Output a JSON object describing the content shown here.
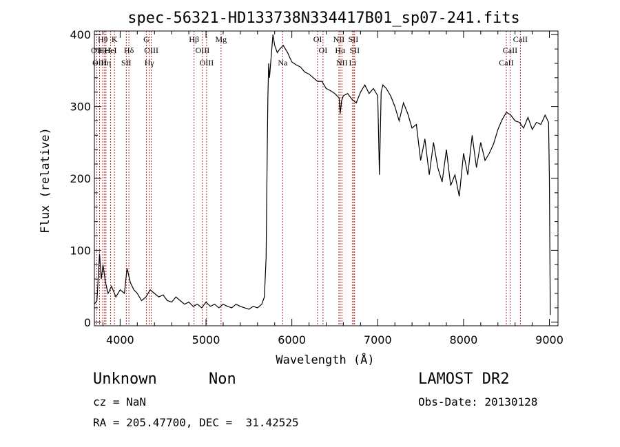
{
  "chart_data": {
    "type": "line",
    "title": "spec-56321-HD133738N334417B01_sp07-241.fits",
    "xlabel": "Wavelength (Å)",
    "ylabel": "Flux (relative)",
    "xlim": [
      3700,
      9100
    ],
    "ylim": [
      -5,
      405
    ],
    "xticks": [
      4000,
      5000,
      6000,
      7000,
      8000,
      9000
    ],
    "yticks": [
      0,
      100,
      200,
      300,
      400
    ],
    "grid": false,
    "series": [
      {
        "line_color": "#000000",
        "x": [
          3700,
          3730,
          3760,
          3780,
          3800,
          3830,
          3860,
          3900,
          3950,
          4000,
          4050,
          4080,
          4120,
          4160,
          4200,
          4250,
          4300,
          4350,
          4400,
          4450,
          4500,
          4550,
          4600,
          4650,
          4700,
          4750,
          4800,
          4850,
          4900,
          4950,
          5000,
          5050,
          5100,
          5150,
          5200,
          5250,
          5300,
          5350,
          5400,
          5450,
          5500,
          5550,
          5600,
          5650,
          5680,
          5700,
          5710,
          5720,
          5730,
          5740,
          5760,
          5780,
          5800,
          5830,
          5860,
          5900,
          5950,
          6000,
          6050,
          6100,
          6150,
          6200,
          6250,
          6300,
          6350,
          6400,
          6450,
          6500,
          6550,
          6563,
          6580,
          6600,
          6650,
          6700,
          6750,
          6800,
          6850,
          6900,
          6950,
          7000,
          7020,
          7040,
          7060,
          7100,
          7150,
          7200,
          7250,
          7300,
          7350,
          7400,
          7450,
          7500,
          7550,
          7600,
          7650,
          7700,
          7750,
          7800,
          7850,
          7900,
          7950,
          8000,
          8050,
          8100,
          8150,
          8200,
          8250,
          8300,
          8350,
          8400,
          8450,
          8500,
          8550,
          8600,
          8650,
          8700,
          8750,
          8800,
          8850,
          8900,
          8950,
          8990,
          9000,
          9010
        ],
        "y": [
          25,
          30,
          95,
          60,
          80,
          55,
          40,
          50,
          35,
          45,
          40,
          75,
          55,
          45,
          40,
          30,
          35,
          45,
          40,
          35,
          38,
          30,
          28,
          35,
          30,
          25,
          28,
          22,
          25,
          20,
          28,
          22,
          25,
          20,
          25,
          22,
          20,
          25,
          22,
          20,
          18,
          22,
          20,
          25,
          35,
          90,
          200,
          310,
          360,
          340,
          370,
          400,
          385,
          375,
          380,
          385,
          375,
          362,
          358,
          355,
          348,
          345,
          340,
          335,
          335,
          325,
          322,
          318,
          312,
          290,
          308,
          315,
          318,
          310,
          305,
          320,
          330,
          318,
          325,
          315,
          205,
          320,
          330,
          325,
          315,
          300,
          280,
          305,
          290,
          270,
          275,
          225,
          255,
          205,
          250,
          215,
          195,
          240,
          190,
          205,
          175,
          235,
          205,
          260,
          215,
          250,
          225,
          235,
          248,
          268,
          282,
          292,
          288,
          280,
          278,
          270,
          285,
          268,
          278,
          275,
          288,
          278,
          200,
          10
        ]
      }
    ],
    "line_markers": [
      {
        "label": "Hθ",
        "x": 3798,
        "row": 1
      },
      {
        "label": "OII",
        "x": 3727,
        "row": 2
      },
      {
        "label": "OIII",
        "x": 3760,
        "row": 3
      },
      {
        "label": "HeI",
        "x": 3819,
        "row": 2
      },
      {
        "label": "Hη",
        "x": 3835,
        "row": 3
      },
      {
        "label": "K",
        "x": 3934,
        "row": 1
      },
      {
        "label": "HeI",
        "x": 3889,
        "row": 2
      },
      {
        "label": "Hδ",
        "x": 4102,
        "row": 2
      },
      {
        "label": "SII",
        "x": 4072,
        "row": 3
      },
      {
        "label": "G",
        "x": 4305,
        "row": 1
      },
      {
        "label": "OIII",
        "x": 4363,
        "row": 2
      },
      {
        "label": "Hγ",
        "x": 4340,
        "row": 3
      },
      {
        "label": "Hβ",
        "x": 4861,
        "row": 1
      },
      {
        "label": "OIII",
        "x": 4959,
        "row": 2
      },
      {
        "label": "OIII",
        "x": 5007,
        "row": 3
      },
      {
        "label": "Mg",
        "x": 5175,
        "row": 1
      },
      {
        "label": "Na",
        "x": 5893,
        "row": 3
      },
      {
        "label": "OI",
        "x": 6300,
        "row": 1
      },
      {
        "label": "OI",
        "x": 6363,
        "row": 2
      },
      {
        "label": "NII",
        "x": 6548,
        "row": 1
      },
      {
        "label": "Hα",
        "x": 6563,
        "row": 2
      },
      {
        "label": "NII",
        "x": 6583,
        "row": 3
      },
      {
        "label": "SII",
        "x": 6716,
        "row": 1
      },
      {
        "label": "SII",
        "x": 6731,
        "row": 2
      },
      {
        "label": "Li",
        "x": 6708,
        "row": 3
      },
      {
        "label": "CaII",
        "x": 8498,
        "row": 3
      },
      {
        "label": "CaII",
        "x": 8542,
        "row": 2
      },
      {
        "label": "CaII",
        "x": 8662,
        "row": 1
      }
    ]
  },
  "info": {
    "class_label": "Unknown",
    "subclass_label": "Non",
    "survey_label": "LAMOST DR2",
    "cz_text": "cz = NaN",
    "obs_date_text": "Obs-Date: 20130128",
    "coords_text": "RA = 205.47700, DEC =  31.42525"
  }
}
